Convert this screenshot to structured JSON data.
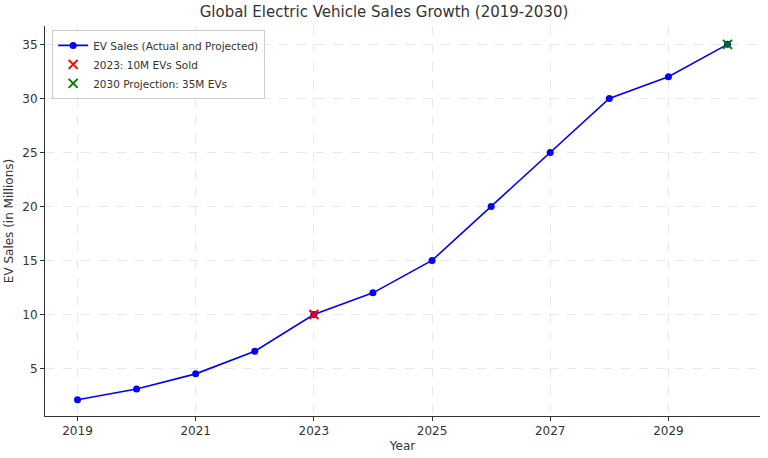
{
  "chart_data": {
    "type": "line",
    "title": "Global Electric Vehicle Sales Growth (2019-2030)",
    "x_label": "Year",
    "y_label": "EV Sales (in Millions)",
    "x": [
      2019,
      2020,
      2021,
      2022,
      2023,
      2024,
      2025,
      2026,
      2027,
      2028,
      2029,
      2030
    ],
    "series": [
      {
        "name": "EV Sales (Actual and Projected)",
        "color": "blue",
        "type": "line",
        "marker": "o",
        "line_style": "solid",
        "values": [
          2.1,
          3.1,
          4.5,
          6.6,
          10,
          12,
          15,
          20,
          25,
          30,
          32,
          35
        ]
      },
      {
        "name": "2023: 10M EVs Sold",
        "color": "red",
        "type": "scatter",
        "marker": "x",
        "values": [
          null,
          null,
          null,
          null,
          10,
          null,
          null,
          null,
          null,
          null,
          null,
          null
        ]
      },
      {
        "name": "2030 Projection: 35M EVs",
        "color": "green",
        "type": "scatter",
        "marker": "x",
        "values": [
          null,
          null,
          null,
          null,
          null,
          null,
          null,
          null,
          null,
          null,
          null,
          35
        ]
      }
    ],
    "xlim": [
      2018.45,
      2030.55
    ],
    "xticks": [
      2019,
      2021,
      2023,
      2025,
      2027,
      2029
    ],
    "ylim": [
      0.6,
      36.7
    ],
    "yticks": [
      5,
      10,
      15,
      20,
      25,
      30,
      35
    ],
    "grid": true,
    "legend": "upper left"
  }
}
